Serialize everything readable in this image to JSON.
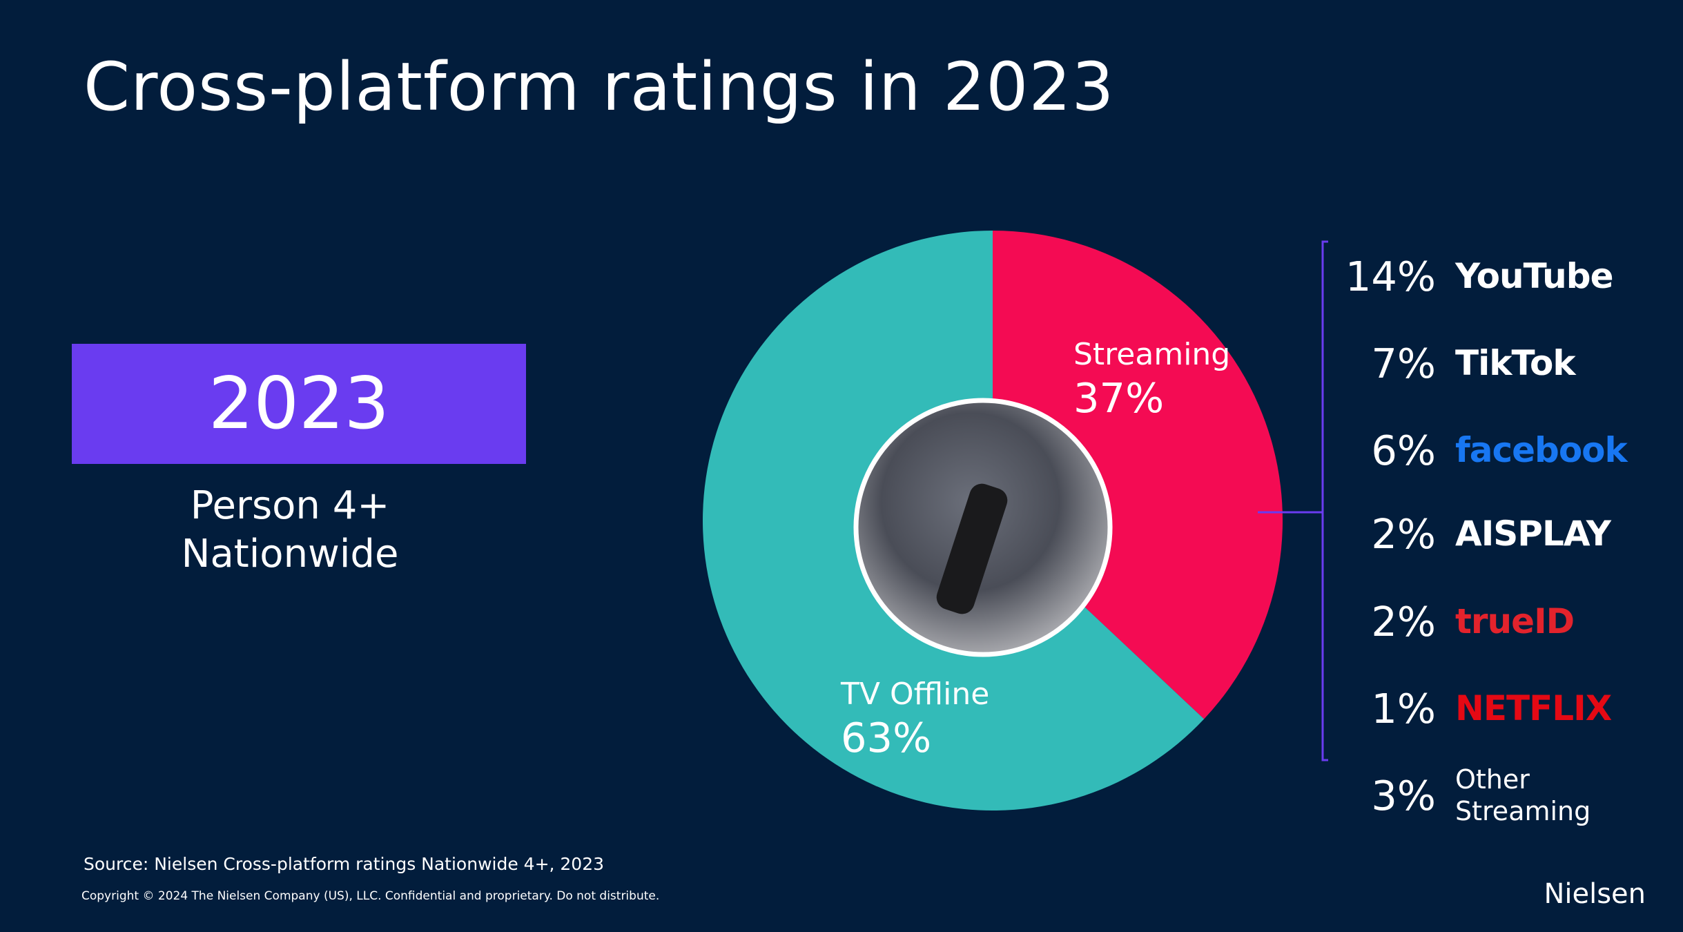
{
  "title": "Cross-platform ratings in 2023",
  "badge": {
    "year": "2023",
    "audience": "Person 4+",
    "region": "Nationwide"
  },
  "chart_data": [
    {
      "type": "pie",
      "categories": [
        "Streaming",
        "TV Offline"
      ],
      "values": [
        37,
        63
      ],
      "value_labels": [
        "37%",
        "63%"
      ],
      "colors": [
        "#f40b53",
        "#33bbb8"
      ]
    },
    {
      "type": "list",
      "categories": [
        "YouTube",
        "TikTok",
        "facebook",
        "AISPLAY",
        "trueID",
        "NETFLIX",
        "Other Streaming"
      ],
      "values": [
        14,
        7,
        6,
        2,
        2,
        1,
        3
      ],
      "value_labels": [
        "14%",
        "7%",
        "6%",
        "2%",
        "2%",
        "1%",
        "3%"
      ],
      "colors": [
        "#ffffff",
        "#ffffff",
        "#1877f2",
        "#ffffff",
        "#e3232c",
        "#e50914",
        "#ffffff"
      ]
    }
  ],
  "source": "Source: Nielsen Cross-platform ratings Nationwide 4+, 2023",
  "copyright": "Copyright © 2024 The Nielsen Company (US), LLC. Confidential and proprietary. Do not distribute.",
  "brand": "Nielsen"
}
